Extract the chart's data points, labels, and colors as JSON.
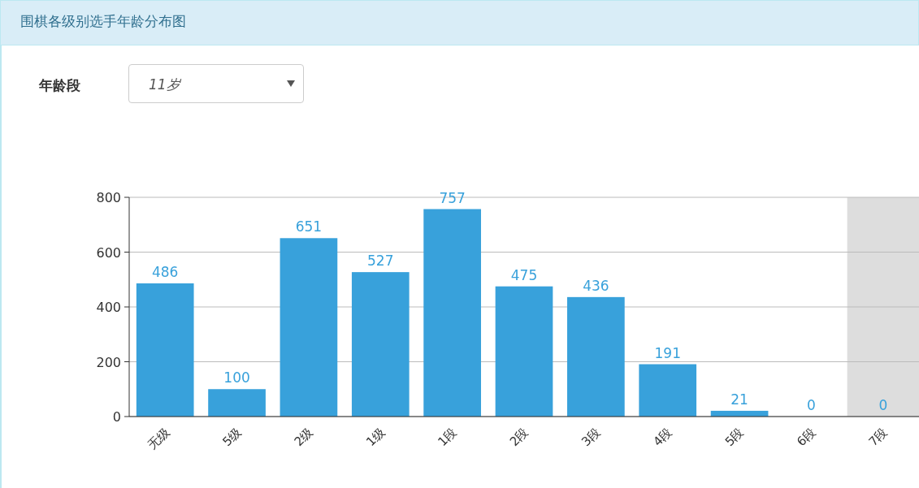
{
  "chart_data": {
    "type": "bar",
    "title": "围棋各级别选手年龄分布图",
    "annotations": [
      "年龄段",
      "11岁"
    ],
    "categories": [
      "无级",
      "5级",
      "2级",
      "1级",
      "1段",
      "2段",
      "3段",
      "4段",
      "5段",
      "6段",
      "7段"
    ],
    "values": [
      486,
      100,
      651,
      527,
      757,
      475,
      436,
      191,
      21,
      0,
      0
    ],
    "color": "#38a1db",
    "ylim": [
      0,
      800
    ],
    "yticks": [
      0,
      200,
      400,
      600,
      800
    ],
    "grid": "y",
    "data_labels": true,
    "bands": [
      {
        "axis": "x",
        "from": "7段",
        "to": "7段",
        "color": "#dddddd"
      }
    ]
  }
}
